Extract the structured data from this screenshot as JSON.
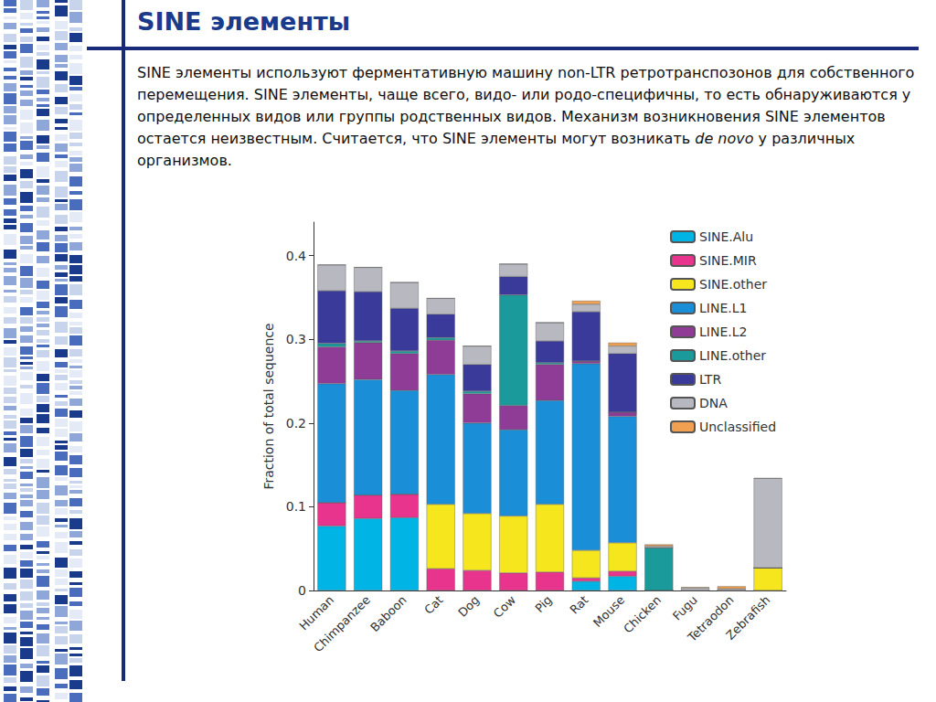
{
  "slide": {
    "title": "SINE элементы",
    "text": [
      {
        "text": "SINE элементы используют ферментативную машину non-LTR ретротранспозонов для собственного перемещения. SINE элементы, чаще всего, видо- или родо-специфичны, то есть обнаруживаются у определенных видов или группы родственных видов. Механизм возникновения SINE элементов остается неизвестным. Считается, что SINE элементы могут возникать ",
        "style": "normal"
      },
      {
        "text": "de novo",
        "style": "italic"
      },
      {
        "text": " у различных организмов.",
        "style": "normal"
      }
    ]
  },
  "chart_data": {
    "type": "bar",
    "stacked": true,
    "grid": false,
    "legend": "upper right",
    "y_label": "Fraction of total sequence",
    "categories": [
      "Human",
      "Chimpanzee",
      "Baboon",
      "Cat",
      "Dog",
      "Cow",
      "Pig",
      "Rat",
      "Mouse",
      "Chicken",
      "Fugu",
      "Tetraodon",
      "Zebrafish"
    ],
    "ylim": [
      0,
      0.44
    ],
    "yticks": [
      0,
      0.1,
      0.2,
      0.3,
      0.4
    ],
    "series": [
      {
        "name": "SINE.Alu",
        "color": "#00b4e6",
        "values": [
          0.077,
          0.086,
          0.087,
          0,
          0,
          0,
          0,
          0.011,
          0.017,
          0,
          0,
          0,
          0
        ]
      },
      {
        "name": "SINE.MIR",
        "color": "#e8348c",
        "values": [
          0.028,
          0.028,
          0.028,
          0.026,
          0.024,
          0.021,
          0.022,
          0.004,
          0.006,
          0,
          0,
          0,
          0
        ]
      },
      {
        "name": "SINE.other",
        "color": "#f5e61e",
        "values": [
          0,
          0,
          0,
          0.077,
          0.068,
          0.068,
          0.081,
          0.033,
          0.034,
          0,
          0,
          0,
          0.027
        ]
      },
      {
        "name": "LINE.L1",
        "color": "#1a8fd8",
        "values": [
          0.142,
          0.138,
          0.124,
          0.155,
          0.108,
          0.103,
          0.124,
          0.223,
          0.151,
          0,
          0,
          0,
          0
        ]
      },
      {
        "name": "LINE.L2",
        "color": "#8e3c96",
        "values": [
          0.044,
          0.044,
          0.044,
          0.041,
          0.035,
          0.029,
          0.043,
          0.003,
          0.005,
          0,
          0,
          0,
          0
        ]
      },
      {
        "name": "LINE.other",
        "color": "#1a9a9a",
        "values": [
          0.004,
          0.002,
          0.003,
          0.003,
          0.003,
          0.132,
          0.002,
          0,
          0,
          0.051,
          0,
          0,
          0
        ]
      },
      {
        "name": "LTR",
        "color": "#3a3a9a",
        "values": [
          0.063,
          0.059,
          0.051,
          0.028,
          0.032,
          0.022,
          0.026,
          0.059,
          0.07,
          0,
          0,
          0,
          0
        ]
      },
      {
        "name": "DNA",
        "color": "#b8b8c0",
        "values": [
          0.031,
          0.029,
          0.031,
          0.019,
          0.022,
          0.015,
          0.022,
          0.009,
          0.009,
          0.002,
          0.003,
          0.002,
          0.107
        ]
      },
      {
        "name": "Unclassified",
        "color": "#f0a050",
        "values": [
          0,
          0,
          0,
          0,
          0,
          0,
          0,
          0.004,
          0.004,
          0.002,
          0.001,
          0.003,
          0
        ]
      }
    ]
  }
}
